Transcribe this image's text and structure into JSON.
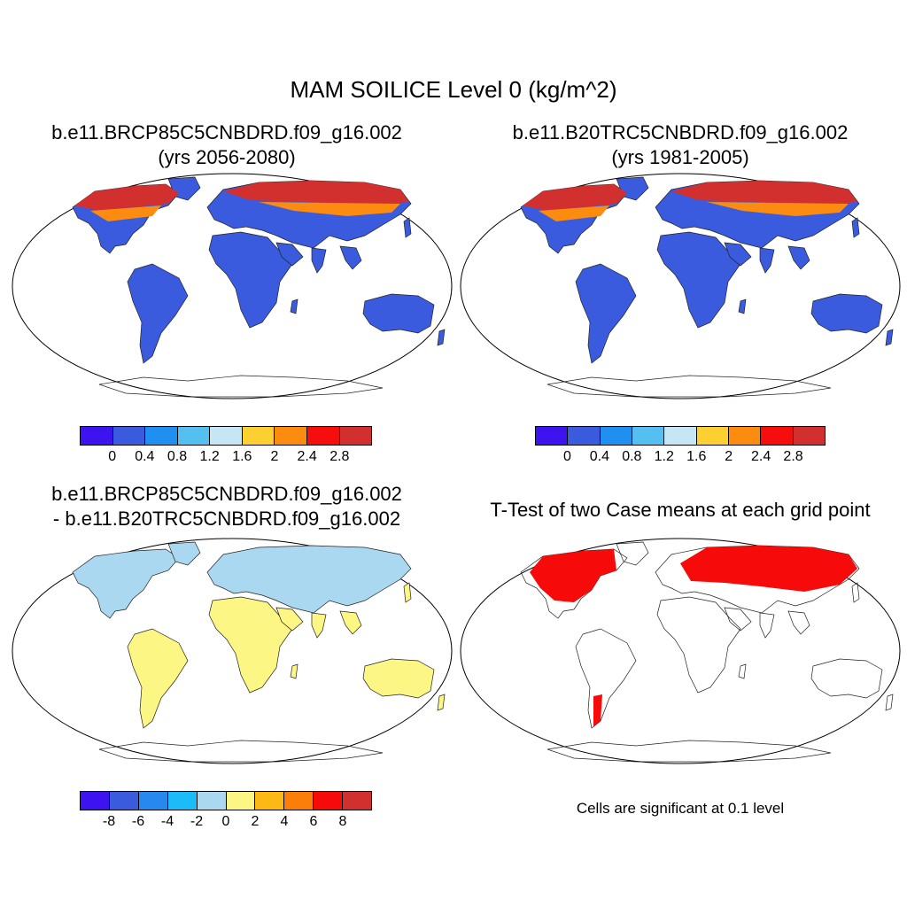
{
  "main_title": "MAM SOILICE Level 0 (kg/m^2)",
  "panels": {
    "top_left": {
      "line1": "b.e11.BRCP85C5CNBDRD.f09_g16.002",
      "line2": "(yrs 2056-2080)"
    },
    "top_right": {
      "line1": "b.e11.B20TRC5CNBDRD.f09_g16.002",
      "line2": "(yrs 1981-2005)"
    },
    "bottom_left": {
      "line1": "b.e11.BRCP85C5CNBDRD.f09_g16.002",
      "line2": "- b.e11.B20TRC5CNBDRD.f09_g16.002"
    },
    "bottom_right": {
      "line1": "T-Test of two Case means at each grid point"
    }
  },
  "colorbar_abs": {
    "colors": [
      "#3d14f0",
      "#3b5bde",
      "#1f8ff0",
      "#55c0f0",
      "#c6e6f5",
      "#fcd032",
      "#fb8c10",
      "#f60d0d",
      "#d22f2f"
    ],
    "ticks": [
      "0",
      "0.4",
      "0.8",
      "1.2",
      "1.6",
      "2",
      "2.4",
      "2.8"
    ]
  },
  "colorbar_diff": {
    "colors": [
      "#3d14f0",
      "#3b5bde",
      "#2788f0",
      "#1cbcf8",
      "#a9d8f0",
      "#fcf684",
      "#fcb814",
      "#fb7d0a",
      "#f60a0a",
      "#d22f2f"
    ],
    "ticks": [
      "-8",
      "-6",
      "-4",
      "-2",
      "0",
      "2",
      "4",
      "6",
      "8"
    ]
  },
  "significance_note": "Cells are significant at 0.1 level",
  "colors": {
    "land_low": "#3b5bde",
    "diff_pos": "#fcf684",
    "diff_neg": "#a9d8f0",
    "sig": "#f60a0a",
    "frozen_high": "#d22f2f",
    "frozen_mid": "#fb8c10"
  }
}
